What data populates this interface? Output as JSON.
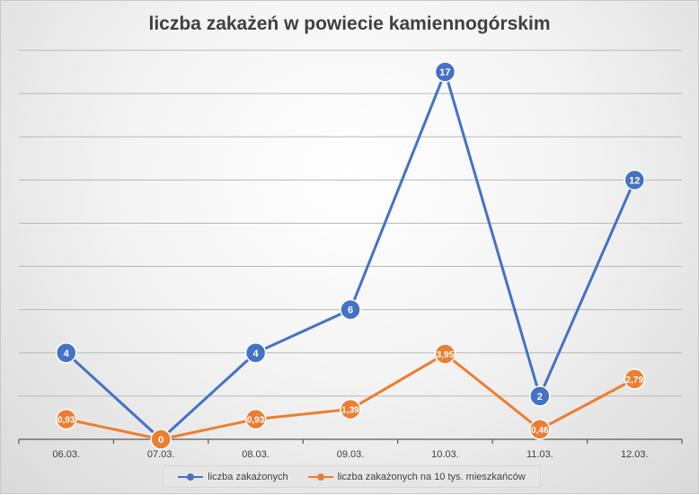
{
  "chart_data": {
    "type": "line",
    "title": "liczba zakażeń w powiecie kamiennogórskim",
    "categories": [
      "06.03.",
      "07.03.",
      "08.03.",
      "09.03.",
      "10.03.",
      "11.03.",
      "12.03."
    ],
    "ylim": [
      0,
      18
    ],
    "grid": true,
    "legend_position": "bottom",
    "series": [
      {
        "name": "liczba zakażonych",
        "color": "#4472C4",
        "values": [
          4,
          0,
          4,
          6,
          17,
          2,
          12
        ],
        "labels": [
          "4",
          "0",
          "4",
          "6",
          "17",
          "2",
          "12"
        ]
      },
      {
        "name": "liczba zakażonych na 10 tys. mieszkańców",
        "color": "#ED7D31",
        "values": [
          0.93,
          0,
          0.93,
          1.39,
          3.95,
          0.46,
          2.79
        ],
        "labels": [
          "0,93",
          "0",
          "0,93",
          "1,39",
          "3,95",
          "0,46",
          "2,79"
        ]
      }
    ]
  }
}
